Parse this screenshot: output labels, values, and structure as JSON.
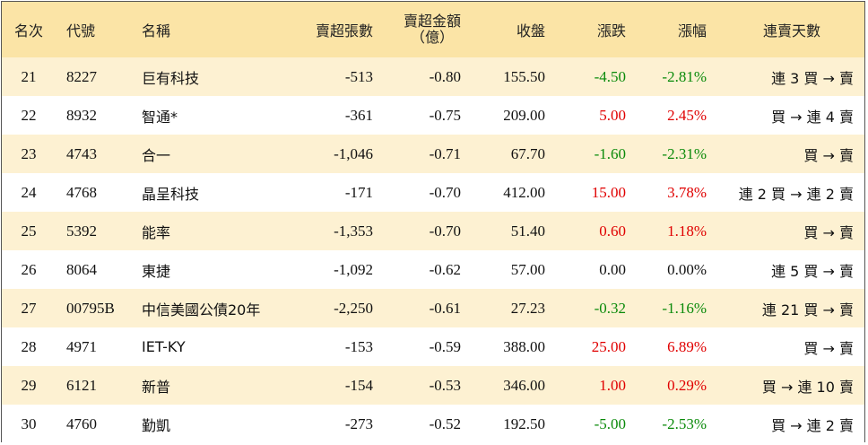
{
  "headers": {
    "rank": "名次",
    "code": "代號",
    "name": "名稱",
    "net_sell_lots": "賣超張數",
    "net_sell_amount_line1": "賣超金額",
    "net_sell_amount_line2": "（億）",
    "close": "收盤",
    "change": "漲跌",
    "change_pct": "漲幅",
    "streak": "連賣天數"
  },
  "rows": [
    {
      "rank": "21",
      "code": "8227",
      "name": "巨有科技",
      "lots": "-513",
      "amount": "-0.80",
      "close": "155.50",
      "change": "-4.50",
      "pct": "-2.81%",
      "dir": "down",
      "streak": "連 3 買 → 賣"
    },
    {
      "rank": "22",
      "code": "8932",
      "name": "智通*",
      "lots": "-361",
      "amount": "-0.75",
      "close": "209.00",
      "change": "5.00",
      "pct": "2.45%",
      "dir": "up",
      "streak": "買 → 連 4 賣"
    },
    {
      "rank": "23",
      "code": "4743",
      "name": "合一",
      "lots": "-1,046",
      "amount": "-0.71",
      "close": "67.70",
      "change": "-1.60",
      "pct": "-2.31%",
      "dir": "down",
      "streak": "買 → 賣"
    },
    {
      "rank": "24",
      "code": "4768",
      "name": "晶呈科技",
      "lots": "-171",
      "amount": "-0.70",
      "close": "412.00",
      "change": "15.00",
      "pct": "3.78%",
      "dir": "up",
      "streak": "連 2 買 → 連 2 賣"
    },
    {
      "rank": "25",
      "code": "5392",
      "name": "能率",
      "lots": "-1,353",
      "amount": "-0.70",
      "close": "51.40",
      "change": "0.60",
      "pct": "1.18%",
      "dir": "up",
      "streak": "買 → 賣"
    },
    {
      "rank": "26",
      "code": "8064",
      "name": "東捷",
      "lots": "-1,092",
      "amount": "-0.62",
      "close": "57.00",
      "change": "0.00",
      "pct": "0.00%",
      "dir": "flat",
      "streak": "連 5 買 → 賣"
    },
    {
      "rank": "27",
      "code": "00795B",
      "name": "中信美國公債20年",
      "lots": "-2,250",
      "amount": "-0.61",
      "close": "27.23",
      "change": "-0.32",
      "pct": "-1.16%",
      "dir": "down",
      "streak": "連 21 買 → 賣"
    },
    {
      "rank": "28",
      "code": "4971",
      "name": "IET-KY",
      "lots": "-153",
      "amount": "-0.59",
      "close": "388.00",
      "change": "25.00",
      "pct": "6.89%",
      "dir": "up",
      "streak": "買 → 賣"
    },
    {
      "rank": "29",
      "code": "6121",
      "name": "新普",
      "lots": "-154",
      "amount": "-0.53",
      "close": "346.00",
      "change": "1.00",
      "pct": "0.29%",
      "dir": "up",
      "streak": "買 → 連 10 賣"
    },
    {
      "rank": "30",
      "code": "4760",
      "name": "勤凱",
      "lots": "-273",
      "amount": "-0.52",
      "close": "192.50",
      "change": "-5.00",
      "pct": "-2.53%",
      "dir": "down",
      "streak": "買 → 連 2 賣"
    }
  ],
  "colors": {
    "header_bg": "#fbe4a6",
    "odd_row_bg": "#fdf1d2",
    "even_row_bg": "#ffffff",
    "up": "#e00000",
    "down": "#0a8a0a"
  }
}
